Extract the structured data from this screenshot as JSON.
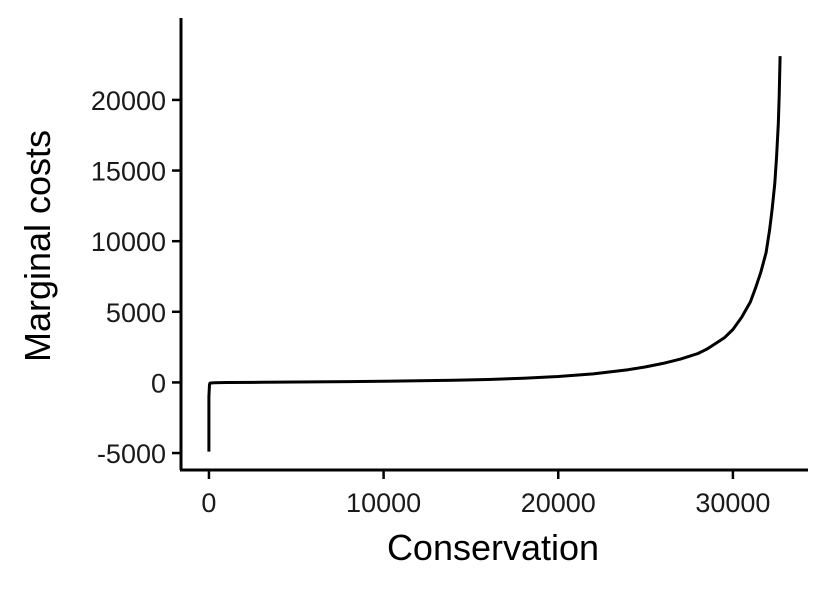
{
  "chart_data": {
    "type": "line",
    "title": "",
    "xlabel": "Conservation",
    "ylabel": "Marginal costs",
    "xlim": [
      -1600,
      34300
    ],
    "ylim": [
      -6200,
      25800
    ],
    "grid": false,
    "legend": "none",
    "x_ticks": [
      0,
      10000,
      20000,
      30000
    ],
    "x_tick_labels": [
      "0",
      "10000",
      "20000",
      "30000"
    ],
    "y_ticks": [
      -5000,
      0,
      5000,
      10000,
      15000,
      20000
    ],
    "y_tick_labels": [
      "-5000",
      "0",
      "5000",
      "10000",
      "15000",
      "20000"
    ],
    "series": [
      {
        "color": "#000000",
        "points": [
          [
            0,
            -4900
          ],
          [
            0,
            -1000
          ],
          [
            30,
            -150
          ],
          [
            60,
            -50
          ],
          [
            300,
            -20
          ],
          [
            1000,
            -5
          ],
          [
            3000,
            10
          ],
          [
            5000,
            30
          ],
          [
            8000,
            60
          ],
          [
            10000,
            90
          ],
          [
            12000,
            120
          ],
          [
            14000,
            160
          ],
          [
            16000,
            210
          ],
          [
            18000,
            300
          ],
          [
            20000,
            420
          ],
          [
            22000,
            600
          ],
          [
            24000,
            900
          ],
          [
            25000,
            1100
          ],
          [
            26000,
            1350
          ],
          [
            27000,
            1650
          ],
          [
            28000,
            2050
          ],
          [
            28500,
            2350
          ],
          [
            29000,
            2750
          ],
          [
            29500,
            3150
          ],
          [
            30000,
            3750
          ],
          [
            30500,
            4600
          ],
          [
            31000,
            5700
          ],
          [
            31300,
            6700
          ],
          [
            31600,
            7800
          ],
          [
            31900,
            9200
          ],
          [
            32100,
            10800
          ],
          [
            32250,
            12300
          ],
          [
            32400,
            14100
          ],
          [
            32500,
            16000
          ],
          [
            32600,
            18300
          ],
          [
            32650,
            20300
          ],
          [
            32700,
            23100
          ]
        ]
      }
    ]
  }
}
